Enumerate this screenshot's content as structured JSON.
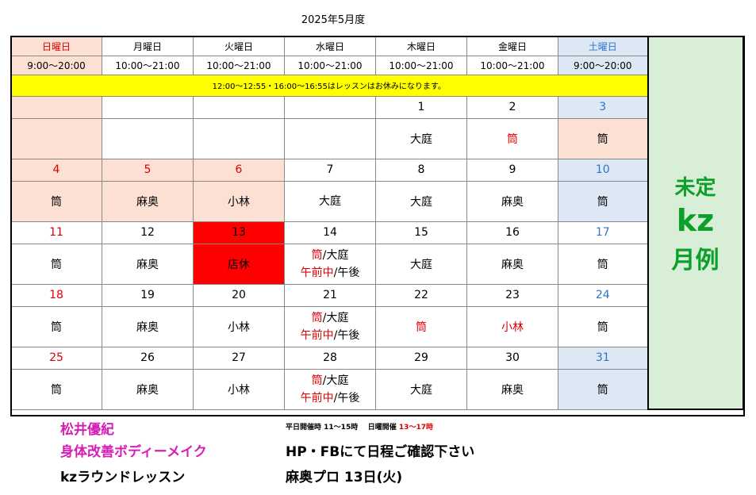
{
  "title": "2025年5月度",
  "days": [
    {
      "name": "日曜日",
      "hours": "9:00～20:00",
      "cls": "sun red"
    },
    {
      "name": "月曜日",
      "hours": "10:00～21:00",
      "cls": ""
    },
    {
      "name": "火曜日",
      "hours": "10:00～21:00",
      "cls": ""
    },
    {
      "name": "水曜日",
      "hours": "10:00～21:00",
      "cls": ""
    },
    {
      "name": "木曜日",
      "hours": "10:00～21:00",
      "cls": ""
    },
    {
      "name": "金曜日",
      "hours": "10:00～21:00",
      "cls": ""
    },
    {
      "name": "土曜日",
      "hours": "9:00～20:00",
      "cls": "sat blue"
    }
  ],
  "notice": "12:00～12:55・16:00～16:55はレッスンはお休みになります。",
  "weeks": [
    {
      "dates": [
        {
          "t": "",
          "c": "sun"
        },
        {
          "t": "",
          "c": ""
        },
        {
          "t": "",
          "c": ""
        },
        {
          "t": "",
          "c": ""
        },
        {
          "t": "1",
          "c": ""
        },
        {
          "t": "2",
          "c": ""
        },
        {
          "t": "3",
          "c": "sat blue"
        }
      ],
      "info": [
        {
          "t": "",
          "c": "sun"
        },
        {
          "t": "",
          "c": ""
        },
        {
          "t": "",
          "c": ""
        },
        {
          "t": "",
          "c": ""
        },
        {
          "t": "大庭",
          "c": ""
        },
        {
          "t": "筒",
          "c": "red"
        },
        {
          "t": "筒",
          "c": "sun"
        }
      ]
    },
    {
      "dates": [
        {
          "t": "4",
          "c": "sun red"
        },
        {
          "t": "5",
          "c": "sun red"
        },
        {
          "t": "6",
          "c": "sun red"
        },
        {
          "t": "7",
          "c": ""
        },
        {
          "t": "8",
          "c": ""
        },
        {
          "t": "9",
          "c": ""
        },
        {
          "t": "10",
          "c": "sat blue"
        }
      ],
      "info": [
        {
          "t": "筒",
          "c": "sun"
        },
        {
          "t": "麻奥",
          "c": "sun"
        },
        {
          "t": "小林",
          "c": "sun"
        },
        {
          "t": "大庭",
          "c": "small"
        },
        {
          "t": "大庭",
          "c": ""
        },
        {
          "t": "麻奥",
          "c": ""
        },
        {
          "t": "筒",
          "c": "sat"
        }
      ]
    },
    {
      "dates": [
        {
          "t": "11",
          "c": "red"
        },
        {
          "t": "12",
          "c": ""
        },
        {
          "t": "13",
          "c": "closed"
        },
        {
          "t": "14",
          "c": ""
        },
        {
          "t": "15",
          "c": ""
        },
        {
          "t": "16",
          "c": ""
        },
        {
          "t": "17",
          "c": "blue"
        }
      ],
      "info": [
        {
          "t": "筒",
          "c": ""
        },
        {
          "t": "麻奥",
          "c": ""
        },
        {
          "t": "店休",
          "c": "closed"
        },
        {
          "split": true
        },
        {
          "t": "大庭",
          "c": ""
        },
        {
          "t": "麻奥",
          "c": ""
        },
        {
          "t": "筒",
          "c": ""
        }
      ]
    },
    {
      "dates": [
        {
          "t": "18",
          "c": "red"
        },
        {
          "t": "19",
          "c": ""
        },
        {
          "t": "20",
          "c": ""
        },
        {
          "t": "21",
          "c": ""
        },
        {
          "t": "22",
          "c": ""
        },
        {
          "t": "23",
          "c": ""
        },
        {
          "t": "24",
          "c": "blue"
        }
      ],
      "info": [
        {
          "t": "筒",
          "c": ""
        },
        {
          "t": "麻奥",
          "c": ""
        },
        {
          "t": "小林",
          "c": ""
        },
        {
          "split": true
        },
        {
          "t": "筒",
          "c": "red"
        },
        {
          "t": "小林",
          "c": "red"
        },
        {
          "t": "筒",
          "c": ""
        }
      ]
    },
    {
      "dates": [
        {
          "t": "25",
          "c": "red"
        },
        {
          "t": "26",
          "c": ""
        },
        {
          "t": "27",
          "c": ""
        },
        {
          "t": "28",
          "c": ""
        },
        {
          "t": "29",
          "c": ""
        },
        {
          "t": "30",
          "c": ""
        },
        {
          "t": "31",
          "c": "sat blue"
        }
      ],
      "info": [
        {
          "t": "筒",
          "c": ""
        },
        {
          "t": "麻奥",
          "c": ""
        },
        {
          "t": "小林",
          "c": ""
        },
        {
          "split": true
        },
        {
          "t": "大庭",
          "c": ""
        },
        {
          "t": "麻奥",
          "c": ""
        },
        {
          "t": "筒",
          "c": "sat"
        }
      ]
    }
  ],
  "split_cell": {
    "a": "筒",
    "sep1": "/",
    "b": "大庭",
    "c": "午前中",
    "sep2": "/",
    "d": "午後"
  },
  "side": {
    "line1": "未定",
    "line2": "kz",
    "line3": "月例"
  },
  "footer": {
    "name": "松井優紀",
    "service": "身体改善ボディーメイク",
    "lesson": "kzラウンドレッスン",
    "weekday_label": "平日開催時",
    "weekday_hours": "11～15時",
    "sunday_label": "日曜開催",
    "sunday_hours": "13～17時",
    "notice": "HP・FBにて日程ご確認下さい",
    "pro": "麻奥プロ 13日(火)"
  },
  "colors": {
    "sunday_red": "#e00000",
    "saturday_blue": "#2e74c8",
    "closed": "#ff0000",
    "notice_bg": "#ffff00",
    "side_green": "#0aa02a",
    "footer_magenta": "#d61eb6"
  }
}
